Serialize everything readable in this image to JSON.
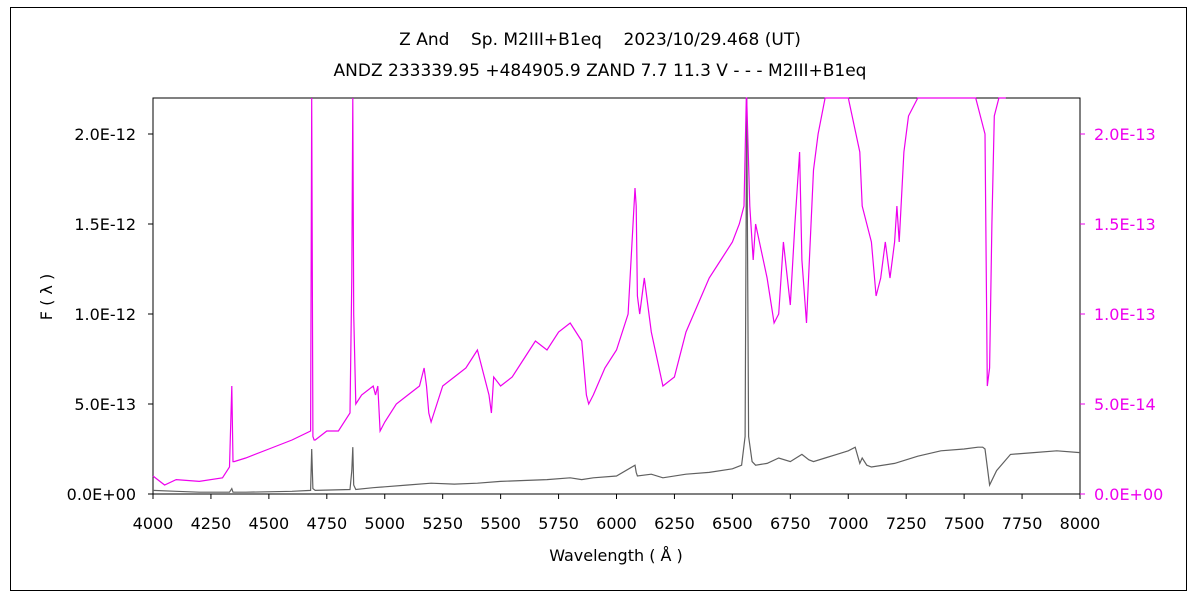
{
  "chart_data": {
    "type": "line",
    "title": "Z And    Sp. M2III+B1eq    2023/10/29.468 (UT)",
    "subtitle": "ANDZ 233339.95 +484905.9 ZAND 7.7 11.3 V - - - M2III+B1eq",
    "xlabel": "Wavelength ( Å )",
    "ylabel": "F ( λ )",
    "xlim": [
      4000,
      8000
    ],
    "y_left_lim": [
      0,
      2.2e-12
    ],
    "y_right_lim": [
      0,
      2.2e-13
    ],
    "x_ticks": [
      "4000",
      "4250",
      "4500",
      "4750",
      "5000",
      "5250",
      "5500",
      "5750",
      "6000",
      "6250",
      "6500",
      "6750",
      "7000",
      "7250",
      "7500",
      "7750",
      "8000"
    ],
    "y_left_ticks": [
      "0.0E+00",
      "5.0E-13",
      "1.0E-12",
      "1.5E-12",
      "2.0E-12"
    ],
    "y_right_ticks": [
      "0.0E+00",
      "5.0E-14",
      "1.0E-13",
      "1.5E-13",
      "2.0E-13"
    ],
    "grid": false,
    "series": [
      {
        "axis": "left",
        "color": "#606060",
        "x": [
          4000,
          4100,
          4200,
          4330,
          4340,
          4345,
          4400,
          4600,
          4680,
          4685,
          4690,
          4700,
          4850,
          4858,
          4862,
          4866,
          4875,
          4950,
          5000,
          5100,
          5200,
          5300,
          5400,
          5500,
          5600,
          5700,
          5800,
          5850,
          5900,
          6000,
          6080,
          6085,
          6090,
          6150,
          6200,
          6300,
          6400,
          6500,
          6540,
          6555,
          6562,
          6570,
          6585,
          6600,
          6650,
          6700,
          6750,
          6800,
          6830,
          6850,
          6900,
          6950,
          7000,
          7030,
          7050,
          7060,
          7080,
          7100,
          7200,
          7300,
          7400,
          7500,
          7560,
          7580,
          7590,
          7600,
          7610,
          7640,
          7700,
          7800,
          7900,
          8000
        ],
        "y": [
          2e-14,
          1.5e-14,
          1e-14,
          1e-14,
          3e-14,
          1e-14,
          1e-14,
          1.5e-14,
          2e-14,
          2.5e-13,
          3e-14,
          2e-14,
          2.5e-14,
          1.3e-13,
          2.6e-13,
          5e-14,
          2.5e-14,
          3.5e-14,
          4e-14,
          5e-14,
          6e-14,
          5.5e-14,
          6e-14,
          7e-14,
          7.5e-14,
          8e-14,
          9e-14,
          8e-14,
          9e-14,
          1e-13,
          1.6e-13,
          1.2e-13,
          1e-13,
          1.1e-13,
          9e-14,
          1.1e-13,
          1.2e-13,
          1.4e-13,
          1.6e-13,
          3.2e-13,
          2.2e-12,
          3.2e-13,
          1.8e-13,
          1.6e-13,
          1.7e-13,
          2e-13,
          1.8e-13,
          2.2e-13,
          1.9e-13,
          1.8e-13,
          2e-13,
          2.2e-13,
          2.4e-13,
          2.6e-13,
          1.7e-13,
          2e-13,
          1.6e-13,
          1.5e-13,
          1.7e-13,
          2.1e-13,
          2.4e-13,
          2.5e-13,
          2.6e-13,
          2.6e-13,
          2.5e-13,
          1.5e-13,
          5e-14,
          1.3e-13,
          2.2e-13,
          2.3e-13,
          2.4e-13,
          2.3e-13
        ]
      },
      {
        "axis": "right",
        "color": "#ee00ee",
        "x": [
          4000,
          4050,
          4100,
          4200,
          4300,
          4330,
          4340,
          4345,
          4350,
          4400,
          4500,
          4600,
          4680,
          4685,
          4690,
          4695,
          4700,
          4750,
          4800,
          4850,
          4858,
          4862,
          4866,
          4875,
          4900,
          4950,
          4960,
          4970,
          4980,
          5000,
          5050,
          5100,
          5150,
          5170,
          5180,
          5190,
          5200,
          5250,
          5300,
          5350,
          5400,
          5450,
          5460,
          5470,
          5500,
          5550,
          5600,
          5650,
          5700,
          5750,
          5800,
          5850,
          5870,
          5880,
          5900,
          5950,
          6000,
          6050,
          6080,
          6085,
          6090,
          6100,
          6120,
          6150,
          6200,
          6250,
          6300,
          6350,
          6400,
          6450,
          6500,
          6530,
          6550,
          6560,
          6562,
          6575,
          6590,
          6600,
          6650,
          6680,
          6700,
          6720,
          6750,
          6770,
          6790,
          6800,
          6820,
          6850,
          6870,
          6900,
          6950,
          7000,
          7050,
          7060,
          7080,
          7100,
          7120,
          7140,
          7160,
          7180,
          7200,
          7210,
          7220,
          7240,
          7260,
          7300,
          7350,
          7400,
          7450,
          7500,
          7550,
          7590,
          7600,
          7610,
          7620,
          7630,
          7650,
          7680
        ],
        "y": [
          1e-14,
          5e-15,
          8e-15,
          7e-15,
          9e-15,
          1.5e-14,
          6e-14,
          1.8e-14,
          1.8e-14,
          2e-14,
          2.5e-14,
          3e-14,
          3.5e-14,
          2.2e-13,
          3.2e-14,
          3e-14,
          3e-14,
          3.5e-14,
          3.5e-14,
          4.5e-14,
          1.2e-13,
          2.2e-13,
          1e-13,
          5e-14,
          5.5e-14,
          6e-14,
          5.5e-14,
          6e-14,
          3.5e-14,
          4e-14,
          5e-14,
          5.5e-14,
          6e-14,
          7e-14,
          6e-14,
          4.5e-14,
          4e-14,
          6e-14,
          6.5e-14,
          7e-14,
          8e-14,
          5.5e-14,
          4.5e-14,
          6.5e-14,
          6e-14,
          6.5e-14,
          7.5e-14,
          8.5e-14,
          8e-14,
          9e-14,
          9.5e-14,
          8.5e-14,
          5.5e-14,
          5e-14,
          5.5e-14,
          7e-14,
          8e-14,
          1e-13,
          1.7e-13,
          1.6e-13,
          1.1e-13,
          1e-13,
          1.2e-13,
          9e-14,
          6e-14,
          6.5e-14,
          9e-14,
          1.05e-13,
          1.2e-13,
          1.3e-13,
          1.4e-13,
          1.5e-13,
          1.6e-13,
          2.2e-13,
          2.2e-13,
          1.6e-13,
          1.3e-13,
          1.5e-13,
          1.2e-13,
          9.5e-14,
          1e-13,
          1.4e-13,
          1.05e-13,
          1.5e-13,
          1.9e-13,
          1.3e-13,
          9.5e-14,
          1.8e-13,
          2e-13,
          2.2e-13,
          2.2e-13,
          2.2e-13,
          1.9e-13,
          1.6e-13,
          1.5e-13,
          1.4e-13,
          1.1e-13,
          1.2e-13,
          1.4e-13,
          1.2e-13,
          1.4e-13,
          1.6e-13,
          1.4e-13,
          1.9e-13,
          2.1e-13,
          2.2e-13,
          2.2e-13,
          2.2e-13,
          2.2e-13,
          2.2e-13,
          2.2e-13,
          2e-13,
          6e-14,
          7e-14,
          1.5e-13,
          2.1e-13,
          2.2e-13,
          2.2e-13
        ]
      }
    ]
  }
}
